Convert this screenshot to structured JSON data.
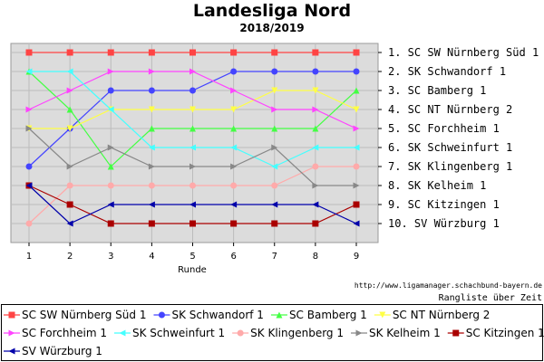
{
  "chart_data": {
    "type": "line",
    "title": "Landesliga Nord",
    "subtitle": "2018/2019",
    "xlabel": "Runde",
    "ylabel": "",
    "x": [
      1,
      2,
      3,
      4,
      5,
      6,
      7,
      8,
      9
    ],
    "ylim": [
      1,
      10
    ],
    "y_inverted": true,
    "grid": true,
    "legend_position": "bottom",
    "source_text": "http://www.ligamanager.schachbund-bayern.de",
    "caption": "Rangliste über Zeit",
    "final_standings": [
      "1. SC SW Nürnberg Süd 1",
      "2. SK Schwandorf 1",
      "3. SC Bamberg 1",
      "4. SC NT Nürnberg 2",
      "5. SC Forchheim 1",
      "6. SK Schweinfurt 1",
      "7. SK Klingenberg 1",
      "8. SK Kelheim 1",
      "9. SC Kitzingen 1",
      "10. SV Würzburg 1"
    ],
    "series": [
      {
        "name": "SC SW Nürnberg Süd 1",
        "color": "#ff4444",
        "marker": "square",
        "values": [
          1,
          1,
          1,
          1,
          1,
          1,
          1,
          1,
          1
        ]
      },
      {
        "name": "SK Schwandorf 1",
        "color": "#4444ff",
        "marker": "circle",
        "values": [
          7,
          5,
          3,
          3,
          3,
          2,
          2,
          2,
          2
        ]
      },
      {
        "name": "SC Bamberg 1",
        "color": "#44ff44",
        "marker": "triangle-up",
        "values": [
          2,
          4,
          7,
          5,
          5,
          5,
          5,
          5,
          3
        ]
      },
      {
        "name": "SC NT Nürnberg 2",
        "color": "#ffff44",
        "marker": "triangle-down",
        "values": [
          5,
          5,
          4,
          4,
          4,
          4,
          3,
          3,
          4
        ]
      },
      {
        "name": "SC Forchheim 1",
        "color": "#ff44ff",
        "marker": "triangle-right",
        "values": [
          4,
          3,
          2,
          2,
          2,
          3,
          4,
          4,
          5
        ]
      },
      {
        "name": "SK Schweinfurt 1",
        "color": "#44ffff",
        "marker": "triangle-left",
        "values": [
          2,
          2,
          4,
          6,
          6,
          6,
          7,
          6,
          6
        ]
      },
      {
        "name": "SK Klingenberg 1",
        "color": "#ffaaaa",
        "marker": "circle",
        "values": [
          10,
          8,
          8,
          8,
          8,
          8,
          8,
          7,
          7
        ]
      },
      {
        "name": "SK Kelheim 1",
        "color": "#888888",
        "marker": "triangle-right",
        "values": [
          5,
          7,
          6,
          7,
          7,
          7,
          6,
          8,
          8
        ]
      },
      {
        "name": "SC Kitzingen 1",
        "color": "#aa0000",
        "marker": "square",
        "values": [
          8,
          9,
          10,
          10,
          10,
          10,
          10,
          10,
          9
        ]
      },
      {
        "name": "SV Würzburg 1",
        "color": "#0000aa",
        "marker": "triangle-left",
        "values": [
          8,
          10,
          9,
          9,
          9,
          9,
          9,
          9,
          10
        ]
      }
    ]
  }
}
